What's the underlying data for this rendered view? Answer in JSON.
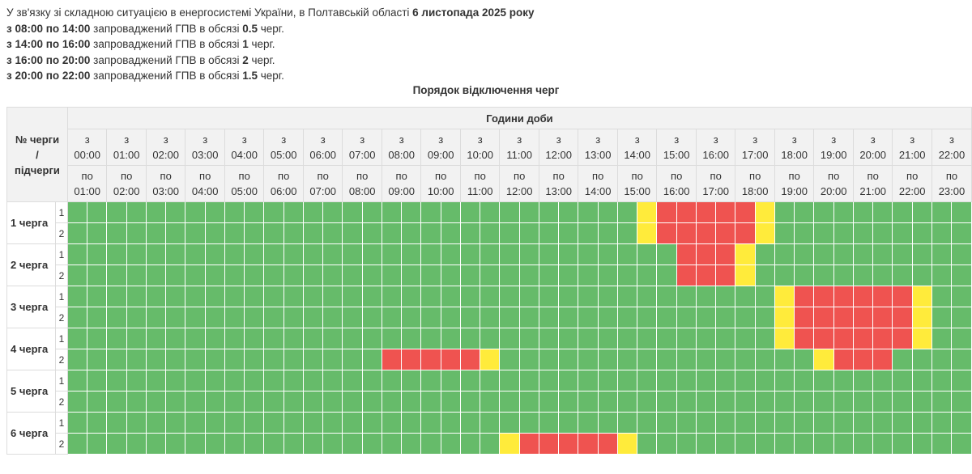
{
  "intro": {
    "line1_pre": "У зв'язку зі складною ситуацією в енергосистемі України, в Полтавській області ",
    "line1_date": "6 листопада 2025 року",
    "periods": [
      {
        "range": "з 08:00 по 14:00",
        "mid": " запроваджений ГПВ в обсязі ",
        "amount": "0.5",
        "unit": " черг."
      },
      {
        "range": "з 14:00 по 16:00",
        "mid": " запроваджений ГПВ в обсязі ",
        "amount": "1",
        "unit": " черг."
      },
      {
        "range": "з 16:00 по 20:00",
        "mid": " запроваджений ГПВ в обсязі ",
        "amount": "2",
        "unit": " черг."
      },
      {
        "range": "з 20:00 по 22:00",
        "mid": " запроваджений ГПВ в обсязі ",
        "amount": "1.5",
        "unit": " черг."
      }
    ]
  },
  "caption": "Порядок відключення черг",
  "table": {
    "corner_label": [
      "№ черги",
      "/",
      "підчерги"
    ],
    "hours_header": "Години доби",
    "from_prefix": "з",
    "to_prefix": "по",
    "hours_from": [
      "00:00",
      "01:00",
      "02:00",
      "03:00",
      "04:00",
      "05:00",
      "06:00",
      "07:00",
      "08:00",
      "09:00",
      "10:00",
      "11:00",
      "12:00",
      "13:00",
      "14:00",
      "15:00",
      "16:00",
      "17:00",
      "18:00",
      "19:00",
      "20:00",
      "21:00",
      "22:00"
    ],
    "hours_to": [
      "01:00",
      "02:00",
      "03:00",
      "04:00",
      "05:00",
      "06:00",
      "07:00",
      "08:00",
      "09:00",
      "10:00",
      "11:00",
      "12:00",
      "13:00",
      "14:00",
      "15:00",
      "16:00",
      "17:00",
      "18:00",
      "19:00",
      "20:00",
      "21:00",
      "22:00",
      "23:00"
    ],
    "legend_colors": {
      "g": "#66bb6a",
      "r": "#ef5350",
      "y": "#ffeb3b"
    },
    "queues": [
      {
        "label": "1 черга",
        "subs": [
          {
            "num": "1",
            "cells": "gggggggggggggggggggggggggggggyrrrrryggggggggggggg"
          },
          {
            "num": "2",
            "cells": "gggggggggggggggggggggggggggggyrrrrryggggggggggggg"
          }
        ]
      },
      {
        "label": "2 черга",
        "subs": [
          {
            "num": "1",
            "cells": "gggggggggggggggggggggggggggggggrrryggggggggggggg"
          },
          {
            "num": "2",
            "cells": "gggggggggggggggggggggggggggggggrrryggggggggggggg"
          }
        ]
      },
      {
        "label": "3 черга",
        "subs": [
          {
            "num": "1",
            "cells": "ggggggggggggggggggggggggggggggggggggyrrrrrryggggggg"
          },
          {
            "num": "2",
            "cells": "ggggggggggggggggggggggggggggggggggggyrrrrrryggggggg"
          }
        ]
      },
      {
        "label": "4 черга",
        "subs": [
          {
            "num": "1",
            "cells": "ggggggggggggggggggggggggggggggggggggyrrrrrryggggggg"
          },
          {
            "num": "2",
            "cells": "ggggggggggggggggrrrrryggggggggggggggggyrrrggggggggggg"
          }
        ]
      },
      {
        "label": "5 черга",
        "subs": [
          {
            "num": "1",
            "cells": "gggggggggggggggggggggggggggggggggggggggggggggg"
          },
          {
            "num": "2",
            "cells": "gggggggggggggggggggggggggggggggggggggggggggggg"
          }
        ]
      },
      {
        "label": "6 черга",
        "subs": [
          {
            "num": "1",
            "cells": "gggggggggggggggggggggggggggggggggggggggggggggg"
          },
          {
            "num": "2",
            "cells": "ggggggggggggggggggggggyrrrrrygggggggggggggggggg"
          }
        ]
      }
    ]
  }
}
